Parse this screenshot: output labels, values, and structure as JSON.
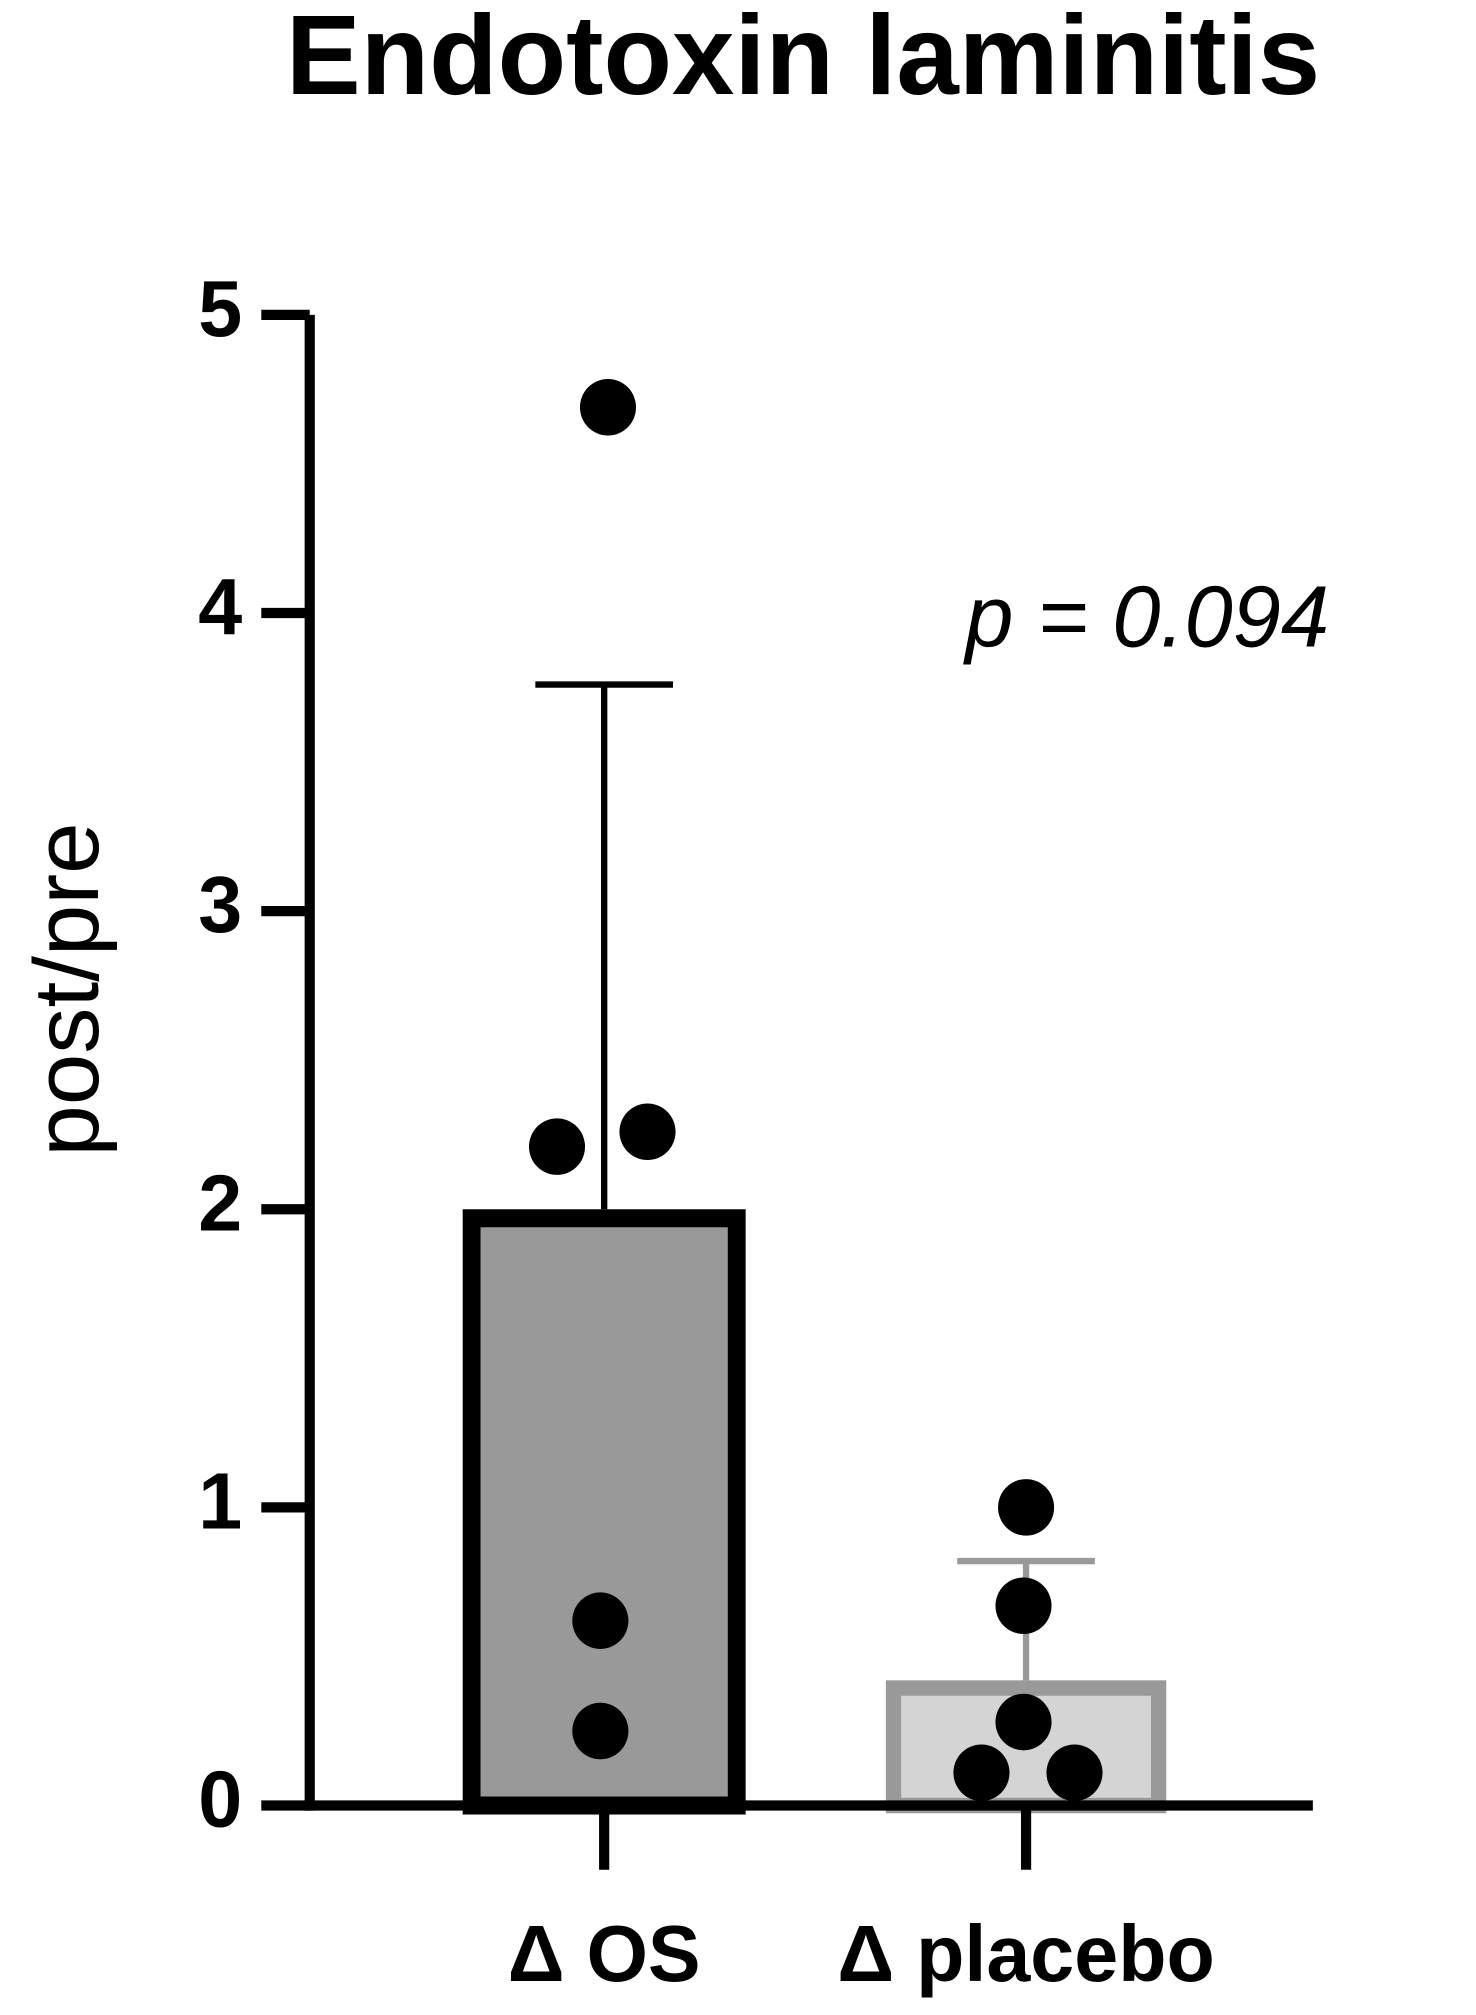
{
  "chart_data": {
    "type": "bar",
    "title": "Endotoxin laminitis",
    "y_label": "post/pre",
    "annotation": "p = 0.094",
    "categories": [
      "Δ OS",
      "Δ placebo"
    ],
    "values": [
      2.0,
      0.42
    ],
    "errors": [
      1.76,
      0.4
    ],
    "colors": [
      "#999999",
      "#d4d4d4"
    ],
    "edge_colors": [
      "#000000",
      "#999999"
    ],
    "points": [
      [
        4.69,
        2.26,
        2.21,
        0.62,
        0.25
      ],
      [
        1.0,
        0.67,
        0.28,
        0.11,
        0.11
      ]
    ],
    "point_color": "#000000",
    "ylim": [
      0,
      5
    ],
    "yticks": [
      0,
      1,
      2,
      3,
      4,
      5
    ]
  }
}
